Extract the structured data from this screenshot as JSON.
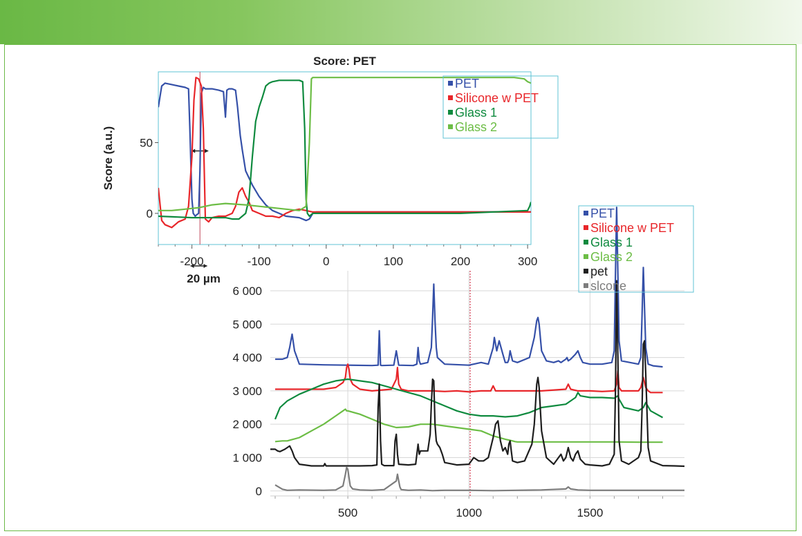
{
  "chart_data": [
    {
      "type": "line",
      "title": "Score: PET",
      "xlabel": "",
      "ylabel": "Score (a.u.)",
      "xlim": [
        -250,
        305
      ],
      "ylim": [
        -22,
        100
      ],
      "xticks": [
        "-200",
        "-100",
        "0",
        "100",
        "200",
        "300"
      ],
      "yticks": [
        "0",
        "50"
      ],
      "grid": false,
      "legend_position": "top-right",
      "annotation": "20 µm",
      "marker_x": -188,
      "series": [
        {
          "name": "PET",
          "color": "#3550a8",
          "x": [
            -250,
            -245,
            -240,
            -230,
            -220,
            -210,
            -205,
            -203,
            -200,
            -198,
            -195,
            -193,
            -190,
            -188,
            -186,
            -183,
            -180,
            -170,
            -160,
            -153,
            -150,
            -148,
            -145,
            -140,
            -135,
            -132,
            -128,
            -125,
            -120,
            -110,
            -100,
            -90,
            -80,
            -70,
            -60,
            -40,
            -30,
            -25,
            -20,
            -15,
            0,
            100,
            200,
            300,
            305
          ],
          "y": [
            75,
            90,
            92,
            91,
            90,
            89,
            88,
            60,
            10,
            0,
            -2,
            -1,
            0,
            30,
            85,
            89,
            88,
            88,
            87,
            86,
            68,
            87,
            88,
            88,
            87,
            75,
            55,
            45,
            30,
            20,
            12,
            6,
            2,
            0,
            -2,
            -3,
            -5,
            -4,
            0,
            1,
            1,
            1,
            1,
            1,
            1
          ]
        },
        {
          "name": "Silicone w PET",
          "color": "#e8262a",
          "x": [
            -250,
            -245,
            -240,
            -230,
            -220,
            -210,
            -205,
            -200,
            -197,
            -194,
            -190,
            -186,
            -183,
            -180,
            -175,
            -170,
            -160,
            -150,
            -140,
            -135,
            -130,
            -125,
            -120,
            -115,
            -110,
            -100,
            -90,
            -80,
            -70,
            -60,
            -50,
            -40,
            -30,
            -20,
            0,
            100,
            200,
            300,
            305
          ],
          "y": [
            18,
            -5,
            -8,
            -10,
            -6,
            -4,
            5,
            40,
            80,
            96,
            95,
            90,
            60,
            -4,
            -6,
            -3,
            -2,
            -2,
            0,
            5,
            15,
            18,
            12,
            8,
            2,
            0,
            -2,
            -2,
            -3,
            0,
            2,
            3,
            2,
            1,
            1,
            1,
            1,
            1,
            1
          ]
        },
        {
          "name": "Glass 1",
          "color": "#0e8a3e",
          "x": [
            -250,
            -200,
            -150,
            -140,
            -130,
            -120,
            -115,
            -110,
            -105,
            -100,
            -95,
            -90,
            -85,
            -80,
            -70,
            -60,
            -50,
            -40,
            -35,
            -32,
            -30,
            -28,
            -25,
            -20,
            0,
            100,
            200,
            300,
            303,
            305
          ],
          "y": [
            -2,
            -3,
            -3,
            -4,
            -4,
            0,
            10,
            40,
            65,
            75,
            82,
            90,
            92,
            93,
            94,
            94,
            94,
            94,
            93,
            60,
            10,
            0,
            -2,
            0,
            0,
            0,
            0,
            2,
            5,
            8
          ]
        },
        {
          "name": "Glass 2",
          "color": "#6cbd45",
          "x": [
            -250,
            -230,
            -210,
            -190,
            -180,
            -170,
            -150,
            -120,
            -100,
            -80,
            -60,
            -40,
            -30,
            -25,
            -22,
            -20,
            -15,
            0,
            100,
            200,
            280,
            295,
            300,
            305
          ],
          "y": [
            2,
            2,
            3,
            4,
            5,
            6,
            7,
            6,
            5,
            4,
            3,
            2,
            5,
            50,
            95,
            96,
            96,
            96,
            96,
            96,
            96,
            95,
            93,
            92
          ]
        }
      ]
    },
    {
      "type": "line",
      "title": "",
      "xlabel": "",
      "ylabel": "",
      "xlim": [
        180,
        1890
      ],
      "ylim": [
        -150,
        6600
      ],
      "xticks": [
        "500",
        "1000",
        "1500"
      ],
      "yticks": [
        "0",
        "1 000",
        "2 000",
        "3 000",
        "4 000",
        "5 000",
        "6 000"
      ],
      "grid": true,
      "legend_position": "top-right",
      "marker_x": 1005,
      "series": [
        {
          "name": "PET",
          "color": "#3550a8",
          "x": [
            200,
            230,
            250,
            260,
            270,
            280,
            300,
            400,
            500,
            600,
            625,
            630,
            635,
            640,
            690,
            700,
            710,
            770,
            785,
            790,
            795,
            800,
            830,
            845,
            850,
            855,
            860,
            865,
            870,
            900,
            1000,
            1050,
            1080,
            1100,
            1105,
            1115,
            1125,
            1140,
            1150,
            1160,
            1165,
            1170,
            1180,
            1200,
            1250,
            1270,
            1280,
            1285,
            1290,
            1300,
            1320,
            1350,
            1370,
            1380,
            1390,
            1400,
            1405,
            1410,
            1420,
            1440,
            1450,
            1460,
            1470,
            1500,
            1550,
            1590,
            1600,
            1605,
            1610,
            1615,
            1620,
            1630,
            1700,
            1710,
            1715,
            1720,
            1725,
            1730,
            1740,
            1760,
            1800
          ],
          "y": [
            3950,
            3950,
            4000,
            4300,
            4700,
            4200,
            3800,
            3780,
            3770,
            3760,
            3770,
            4800,
            3770,
            3760,
            3770,
            4200,
            3770,
            3760,
            3800,
            4300,
            3900,
            3800,
            3850,
            4300,
            5200,
            6200,
            5100,
            4300,
            4000,
            3800,
            3770,
            3850,
            3800,
            4300,
            4600,
            4200,
            4500,
            4100,
            3850,
            3850,
            3950,
            4200,
            3900,
            3850,
            4000,
            4600,
            5100,
            5200,
            5000,
            4200,
            3900,
            3850,
            3900,
            3850,
            3900,
            3950,
            4000,
            3900,
            3950,
            4100,
            4200,
            4000,
            3850,
            3800,
            3800,
            3850,
            4200,
            6500,
            8500,
            6500,
            4500,
            3900,
            3800,
            4000,
            5300,
            6700,
            5500,
            4300,
            3800,
            3750,
            3720
          ]
        },
        {
          "name": "Silicone w PET",
          "color": "#e8262a",
          "x": [
            200,
            300,
            400,
            450,
            480,
            490,
            495,
            500,
            505,
            510,
            520,
            550,
            600,
            680,
            700,
            705,
            710,
            720,
            750,
            800,
            850,
            900,
            950,
            1000,
            1050,
            1090,
            1100,
            1110,
            1150,
            1200,
            1300,
            1400,
            1410,
            1420,
            1450,
            1500,
            1550,
            1600,
            1610,
            1615,
            1620,
            1630,
            1700,
            1710,
            1720,
            1730,
            1740,
            1750,
            1800
          ],
          "y": [
            3050,
            3050,
            3050,
            3100,
            3250,
            3400,
            3700,
            3800,
            3650,
            3350,
            3200,
            3050,
            3000,
            3050,
            3350,
            3700,
            3200,
            3050,
            3000,
            3000,
            3000,
            2980,
            3000,
            2970,
            3000,
            3000,
            3150,
            3000,
            3000,
            3000,
            3000,
            3050,
            3200,
            3050,
            3000,
            3000,
            2980,
            3000,
            3200,
            3600,
            3100,
            3000,
            3000,
            3100,
            3400,
            3100,
            3000,
            2950,
            2950
          ]
        },
        {
          "name": "Glass 1",
          "color": "#0e8a3e",
          "x": [
            200,
            220,
            250,
            300,
            350,
            400,
            450,
            500,
            550,
            600,
            650,
            700,
            750,
            800,
            850,
            900,
            950,
            1000,
            1050,
            1100,
            1150,
            1200,
            1250,
            1300,
            1350,
            1400,
            1420,
            1440,
            1450,
            1460,
            1500,
            1550,
            1600,
            1615,
            1620,
            1640,
            1700,
            1720,
            1730,
            1750,
            1800
          ],
          "y": [
            2150,
            2500,
            2700,
            2900,
            3050,
            3200,
            3300,
            3350,
            3300,
            3250,
            3150,
            3050,
            2950,
            2850,
            2700,
            2550,
            2400,
            2300,
            2250,
            2250,
            2220,
            2250,
            2350,
            2500,
            2550,
            2600,
            2700,
            2800,
            2950,
            2850,
            2800,
            2800,
            2780,
            2850,
            2750,
            2500,
            2400,
            2500,
            2650,
            2400,
            2200
          ]
        },
        {
          "name": "Glass 2",
          "color": "#6cbd45",
          "x": [
            200,
            230,
            250,
            300,
            350,
            400,
            450,
            480,
            490,
            495,
            500,
            550,
            600,
            650,
            700,
            750,
            800,
            850,
            900,
            950,
            1000,
            1050,
            1100,
            1150,
            1180,
            1190,
            1200,
            1300,
            1400,
            1500,
            1600,
            1700,
            1800
          ],
          "y": [
            1480,
            1500,
            1500,
            1600,
            1800,
            2000,
            2250,
            2400,
            2450,
            2400,
            2400,
            2300,
            2150,
            2000,
            1900,
            1920,
            2000,
            2000,
            1950,
            1900,
            1850,
            1800,
            1650,
            1550,
            1500,
            1480,
            1470,
            1470,
            1470,
            1470,
            1470,
            1460,
            1460
          ]
        },
        {
          "name": "pet",
          "color": "#1e1e1e",
          "x": [
            180,
            200,
            210,
            220,
            240,
            260,
            270,
            280,
            300,
            350,
            400,
            405,
            410,
            450,
            500,
            550,
            600,
            620,
            625,
            630,
            635,
            640,
            650,
            690,
            695,
            700,
            705,
            710,
            750,
            780,
            790,
            795,
            800,
            830,
            840,
            845,
            850,
            855,
            860,
            865,
            870,
            880,
            890,
            900,
            950,
            1000,
            1020,
            1040,
            1060,
            1080,
            1100,
            1110,
            1120,
            1130,
            1140,
            1150,
            1160,
            1165,
            1170,
            1175,
            1180,
            1200,
            1230,
            1260,
            1270,
            1280,
            1285,
            1290,
            1300,
            1320,
            1350,
            1370,
            1380,
            1390,
            1400,
            1410,
            1420,
            1430,
            1440,
            1450,
            1460,
            1480,
            1500,
            1550,
            1580,
            1600,
            1605,
            1610,
            1615,
            1620,
            1630,
            1660,
            1700,
            1710,
            1715,
            1720,
            1725,
            1730,
            1740,
            1750,
            1800,
            1850,
            1890
          ],
          "y": [
            1250,
            1250,
            1200,
            1180,
            1250,
            1350,
            1200,
            1000,
            800,
            750,
            750,
            820,
            750,
            750,
            750,
            750,
            760,
            780,
            2500,
            3200,
            1500,
            800,
            760,
            760,
            1500,
            1700,
            1100,
            800,
            780,
            800,
            1400,
            1100,
            1200,
            1200,
            1700,
            2600,
            3350,
            3300,
            2000,
            1500,
            1400,
            1300,
            1100,
            850,
            780,
            800,
            1000,
            900,
            900,
            1000,
            1600,
            2000,
            2100,
            1500,
            1200,
            1300,
            1100,
            1400,
            1500,
            1200,
            900,
            850,
            900,
            1400,
            2000,
            3200,
            3400,
            3100,
            1800,
            1000,
            800,
            1000,
            1100,
            900,
            1000,
            1300,
            1000,
            900,
            1100,
            1200,
            950,
            800,
            780,
            750,
            800,
            1100,
            3000,
            6300,
            4000,
            1500,
            900,
            800,
            1000,
            1200,
            2500,
            4400,
            4500,
            3500,
            1300,
            900,
            760,
            750,
            740
          ]
        },
        {
          "name": "slcone",
          "color": "#7d7d7d",
          "x": [
            200,
            230,
            250,
            300,
            400,
            450,
            480,
            490,
            495,
            500,
            505,
            510,
            520,
            550,
            600,
            650,
            700,
            705,
            710,
            715,
            720,
            750,
            800,
            850,
            900,
            1000,
            1100,
            1200,
            1300,
            1400,
            1410,
            1420,
            1450,
            1500,
            1600,
            1700,
            1800,
            1850,
            1890
          ],
          "y": [
            180,
            50,
            20,
            30,
            20,
            30,
            150,
            500,
            700,
            650,
            400,
            150,
            60,
            30,
            20,
            40,
            300,
            500,
            300,
            120,
            40,
            20,
            30,
            10,
            20,
            20,
            10,
            20,
            30,
            60,
            120,
            60,
            30,
            20,
            20,
            20,
            20,
            20,
            20
          ]
        }
      ]
    }
  ]
}
